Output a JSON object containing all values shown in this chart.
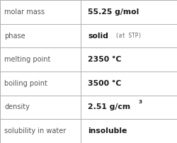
{
  "rows": [
    {
      "label": "molar mass",
      "value": "55.25 g/mol",
      "superscript": null,
      "extra_small": null
    },
    {
      "label": "phase",
      "value": "solid",
      "superscript": null,
      "extra_small": "(at STP)"
    },
    {
      "label": "melting point",
      "value": "2350 °C",
      "superscript": null,
      "extra_small": null
    },
    {
      "label": "boiling point",
      "value": "3500 °C",
      "superscript": null,
      "extra_small": null
    },
    {
      "label": "density",
      "value": "2.51 g/cm",
      "superscript": "3",
      "extra_small": null
    },
    {
      "label": "solubility in water",
      "value": "insoluble",
      "superscript": null,
      "extra_small": null
    }
  ],
  "col_split": 0.455,
  "background_color": "#ffffff",
  "border_color": "#b0b0b0",
  "label_color": "#555555",
  "value_color": "#1a1a1a",
  "small_color": "#666666",
  "label_fontsize": 7.0,
  "value_fontsize": 7.8,
  "small_fontsize": 5.5,
  "super_fontsize": 5.2,
  "fig_width": 2.51,
  "fig_height": 2.02,
  "dpi": 100
}
